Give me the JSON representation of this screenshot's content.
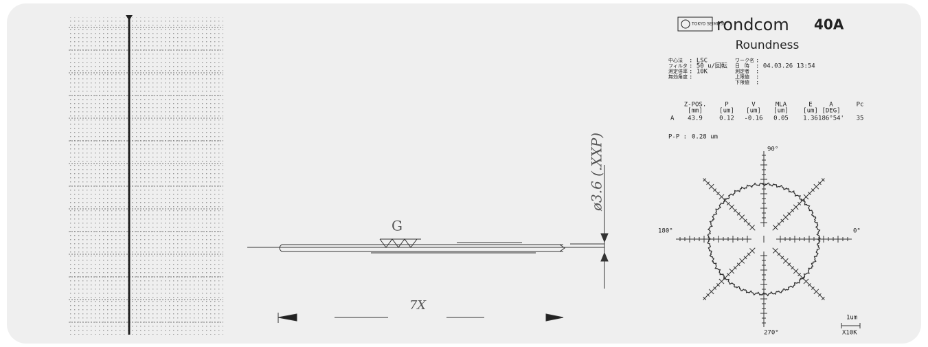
{
  "header": {
    "logo": "TOKYO SEIMITSU",
    "brand": "rondcom",
    "model": "40A",
    "title": "Roundness"
  },
  "conditions": {
    "left": [
      {
        "label": "中心法",
        "value": ": LSC"
      },
      {
        "label": "フィルタ",
        "value": ": 50 u/回転"
      },
      {
        "label": "測定倍率",
        "value": ": 10K"
      },
      {
        "label": "無効角度",
        "value": ":"
      }
    ],
    "right": [
      {
        "label": "ワーク名",
        "value": ":"
      },
      {
        "label": "日　時",
        "value": ": 04.03.26 13:54"
      },
      {
        "label": "測定者",
        "value": ":"
      },
      {
        "label": "上限値",
        "value": ":"
      },
      {
        "label": "下限値",
        "value": ":"
      }
    ]
  },
  "results": {
    "headers": [
      "Z-POS.",
      "P",
      "V",
      "MLA",
      "E",
      "A",
      "Pc"
    ],
    "units": [
      "[mm]",
      "[um]",
      "[um]",
      "[um]",
      "[um]",
      "[DEG]"
    ],
    "row_label": "A",
    "row": [
      "43.9",
      "0.12",
      "-0.16",
      "0.05",
      "1.36",
      "186°54'",
      "35"
    ]
  },
  "pp": {
    "label": "P-P :",
    "value": "0.28 um"
  },
  "polar": {
    "top": "90°",
    "left": "180°",
    "right": "0°",
    "bottom": "270°",
    "scale": "1um",
    "magnification": "X10K"
  },
  "drawing": {
    "grind": "G",
    "diameter": "ø3.6 (.XXP)",
    "length": "7X"
  }
}
